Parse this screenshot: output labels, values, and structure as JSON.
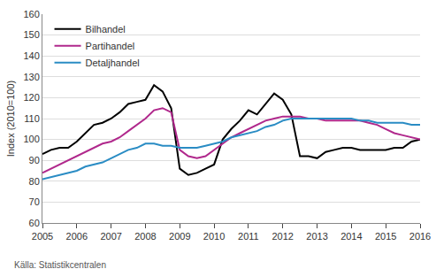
{
  "chart_data": {
    "type": "line",
    "y_label": "Index (2010=100)",
    "source": "Källa: Statistikcentralen",
    "x": [
      2005,
      2005.25,
      2005.5,
      2005.75,
      2006,
      2006.25,
      2006.5,
      2006.75,
      2007,
      2007.25,
      2007.5,
      2007.75,
      2008,
      2008.25,
      2008.5,
      2008.75,
      2009,
      2009.25,
      2009.5,
      2009.75,
      2010,
      2010.25,
      2010.5,
      2010.75,
      2011,
      2011.25,
      2011.5,
      2011.75,
      2012,
      2012.25,
      2012.5,
      2012.75,
      2013,
      2013.25,
      2013.5,
      2013.75,
      2014,
      2014.25,
      2014.5,
      2014.75,
      2015,
      2015.25,
      2015.5,
      2015.75,
      2016
    ],
    "series": [
      {
        "name": "Bilhandel",
        "color": "#000000",
        "values": [
          93,
          95,
          96,
          96,
          99,
          103,
          107,
          108,
          110,
          113,
          117,
          118,
          119,
          126,
          123,
          115,
          86,
          83,
          84,
          86,
          88,
          100,
          105,
          109,
          114,
          112,
          117,
          122,
          119,
          112,
          92,
          92,
          91,
          94,
          95,
          96,
          96,
          95,
          95,
          95,
          95,
          96,
          96,
          99,
          100
        ]
      },
      {
        "name": "Partihandel",
        "color": "#b0288c",
        "values": [
          84,
          86,
          88,
          90,
          92,
          94,
          96,
          98,
          99,
          101,
          104,
          107,
          110,
          114,
          115,
          113,
          95,
          92,
          91,
          92,
          95,
          98,
          101,
          103,
          105,
          107,
          109,
          110,
          111,
          111,
          111,
          110,
          110,
          109,
          109,
          109,
          109,
          109,
          108,
          107,
          105,
          103,
          102,
          101,
          100
        ]
      },
      {
        "name": "Detaljhandel",
        "color": "#2a8cc4",
        "values": [
          81,
          82,
          83,
          84,
          85,
          87,
          88,
          89,
          91,
          93,
          95,
          96,
          98,
          98,
          97,
          97,
          96,
          96,
          96,
          97,
          98,
          99,
          101,
          102,
          103,
          104,
          106,
          107,
          109,
          110,
          110,
          110,
          110,
          110,
          110,
          110,
          110,
          109,
          109,
          108,
          108,
          108,
          108,
          107,
          107
        ]
      }
    ],
    "xlim": [
      2005,
      2016
    ],
    "xticks": [
      2005,
      2006,
      2007,
      2008,
      2009,
      2010,
      2011,
      2012,
      2013,
      2014,
      2015,
      2016
    ],
    "ylim": [
      60,
      160
    ],
    "yticks": [
      60,
      70,
      80,
      90,
      100,
      110,
      120,
      130,
      140,
      150,
      160
    ],
    "grid": true,
    "legend": "upper left"
  }
}
